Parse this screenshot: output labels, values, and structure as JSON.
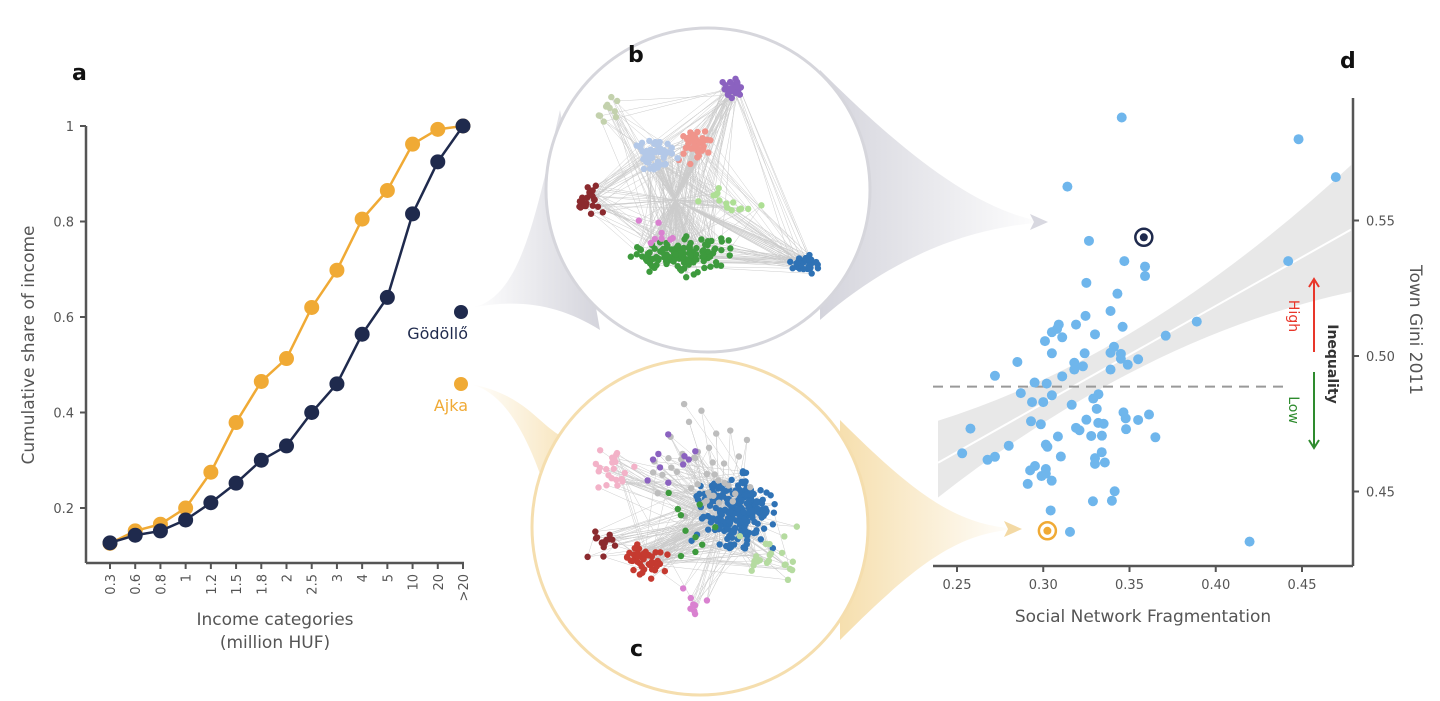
{
  "panel_labels": {
    "a": "a",
    "b": "b",
    "c": "c",
    "d": "d"
  },
  "colors": {
    "navy": "#1f2a4d",
    "orange": "#f0aa35",
    "scatter": "#6fb6ec",
    "band": "#e6e6e6",
    "high": "#e8362a",
    "low": "#2e8b2e"
  },
  "towns": {
    "godollo": "Gödöllő",
    "ajka": "Ajka"
  },
  "inequality": {
    "title": "Inequality",
    "high": "High",
    "low": "Low"
  },
  "chart_data": [
    {
      "type": "line",
      "panel": "a",
      "xlabel": "Income categories",
      "xlabel2": "(million HUF)",
      "ylabel": "Cumulative share of income",
      "categories": [
        "0.3",
        "0.6",
        "0.8",
        "1",
        "1.2",
        "1.5",
        "1.8",
        "2",
        "2.5",
        "3",
        "4",
        "5",
        "10",
        "20",
        ">20"
      ],
      "yticks": [
        "0.2",
        "0.4",
        "0.6",
        "0.8",
        "1"
      ],
      "ylim": [
        0.085,
        1.0
      ],
      "grid": false,
      "series": [
        {
          "name": "Ajka",
          "color": "#f0aa35",
          "values": [
            0.126,
            0.152,
            0.166,
            0.2,
            0.275,
            0.379,
            0.465,
            0.513,
            0.62,
            0.698,
            0.805,
            0.865,
            0.962,
            0.993,
            1.0
          ]
        },
        {
          "name": "Gödöllő",
          "color": "#1f2a4d",
          "values": [
            0.127,
            0.143,
            0.152,
            0.175,
            0.211,
            0.252,
            0.3,
            0.33,
            0.4,
            0.46,
            0.564,
            0.641,
            0.816,
            0.925,
            1.0
          ]
        }
      ]
    },
    {
      "type": "scatter",
      "panel": "d",
      "xlabel": "Social Network Fragmentation",
      "ylabel": "Town Gini 2011",
      "xticks": [
        "0.25",
        "0.30",
        "0.35",
        "0.40",
        "0.45"
      ],
      "yticks": [
        "0.45",
        "0.50",
        "0.55"
      ],
      "xlim": [
        0.239,
        0.4785
      ],
      "ylim": [
        0.4237,
        0.594
      ],
      "grid": false,
      "reference_line_y": 0.4887,
      "fit_line": [
        [
          0.239,
          0.4606
        ],
        [
          0.4785,
          0.5467
        ]
      ],
      "confidence_band": {
        "left": [
          0.4478,
          0.4761
        ],
        "right": [
          0.5236,
          0.5705
        ]
      },
      "highlighted": [
        {
          "name": "Gödöllő",
          "x": 0.3583,
          "y": 0.5438,
          "color": "#1f2a4d"
        },
        {
          "name": "Ajka",
          "x": 0.3024,
          "y": 0.4355,
          "color": "#f0aa35"
        }
      ],
      "points": [
        [
          0.3455,
          0.588
        ],
        [
          0.448,
          0.58
        ],
        [
          0.4696,
          0.566
        ],
        [
          0.314,
          0.5625
        ],
        [
          0.3265,
          0.5425
        ],
        [
          0.347,
          0.535
        ],
        [
          0.359,
          0.533
        ],
        [
          0.359,
          0.5295
        ],
        [
          0.442,
          0.535
        ],
        [
          0.325,
          0.527
        ],
        [
          0.343,
          0.523
        ],
        [
          0.339,
          0.5166
        ],
        [
          0.3245,
          0.5148
        ],
        [
          0.319,
          0.5116
        ],
        [
          0.309,
          0.5116
        ],
        [
          0.308,
          0.51
        ],
        [
          0.305,
          0.5088
        ],
        [
          0.311,
          0.5069
        ],
        [
          0.33,
          0.508
        ],
        [
          0.346,
          0.5108
        ],
        [
          0.389,
          0.5127
        ],
        [
          0.371,
          0.5075
        ],
        [
          0.301,
          0.5055
        ],
        [
          0.341,
          0.5034
        ],
        [
          0.339,
          0.5012
        ],
        [
          0.345,
          0.5008
        ],
        [
          0.345,
          0.499
        ],
        [
          0.305,
          0.501
        ],
        [
          0.324,
          0.501
        ],
        [
          0.285,
          0.4978
        ],
        [
          0.318,
          0.4975
        ],
        [
          0.323,
          0.4962
        ],
        [
          0.318,
          0.495
        ],
        [
          0.339,
          0.495
        ],
        [
          0.349,
          0.4968
        ],
        [
          0.355,
          0.4988
        ],
        [
          0.272,
          0.4927
        ],
        [
          0.311,
          0.4925
        ],
        [
          0.295,
          0.4902
        ],
        [
          0.302,
          0.4898
        ],
        [
          0.287,
          0.4863
        ],
        [
          0.305,
          0.4855
        ],
        [
          0.332,
          0.4859
        ],
        [
          0.329,
          0.4843
        ],
        [
          0.2935,
          0.483
        ],
        [
          0.3,
          0.483
        ],
        [
          0.3165,
          0.482
        ],
        [
          0.331,
          0.4805
        ],
        [
          0.3465,
          0.4792
        ],
        [
          0.3478,
          0.477
        ],
        [
          0.3613,
          0.4784
        ],
        [
          0.355,
          0.4764
        ],
        [
          0.325,
          0.4765
        ],
        [
          0.2929,
          0.4759
        ],
        [
          0.2986,
          0.4748
        ],
        [
          0.3319,
          0.4753
        ],
        [
          0.335,
          0.475
        ],
        [
          0.2578,
          0.4732
        ],
        [
          0.319,
          0.4735
        ],
        [
          0.321,
          0.4726
        ],
        [
          0.348,
          0.473
        ],
        [
          0.3278,
          0.4705
        ],
        [
          0.334,
          0.4706
        ],
        [
          0.3085,
          0.4703
        ],
        [
          0.365,
          0.47
        ],
        [
          0.28,
          0.4669
        ],
        [
          0.3015,
          0.4673
        ],
        [
          0.3024,
          0.4665
        ],
        [
          0.253,
          0.4641
        ],
        [
          0.3339,
          0.4645
        ],
        [
          0.272,
          0.4628
        ],
        [
          0.2677,
          0.4617
        ],
        [
          0.3102,
          0.4629
        ],
        [
          0.33,
          0.4623
        ],
        [
          0.33,
          0.4602
        ],
        [
          0.3357,
          0.4607
        ],
        [
          0.2952,
          0.4594
        ],
        [
          0.2924,
          0.4578
        ],
        [
          0.3015,
          0.4583
        ],
        [
          0.299,
          0.4557
        ],
        [
          0.3015,
          0.4566
        ],
        [
          0.3049,
          0.454
        ],
        [
          0.291,
          0.4528
        ],
        [
          0.3414,
          0.4501
        ],
        [
          0.3398,
          0.4466
        ],
        [
          0.3288,
          0.4464
        ],
        [
          0.3043,
          0.443
        ],
        [
          0.3155,
          0.4351
        ],
        [
          0.4196,
          0.4315
        ]
      ]
    }
  ]
}
